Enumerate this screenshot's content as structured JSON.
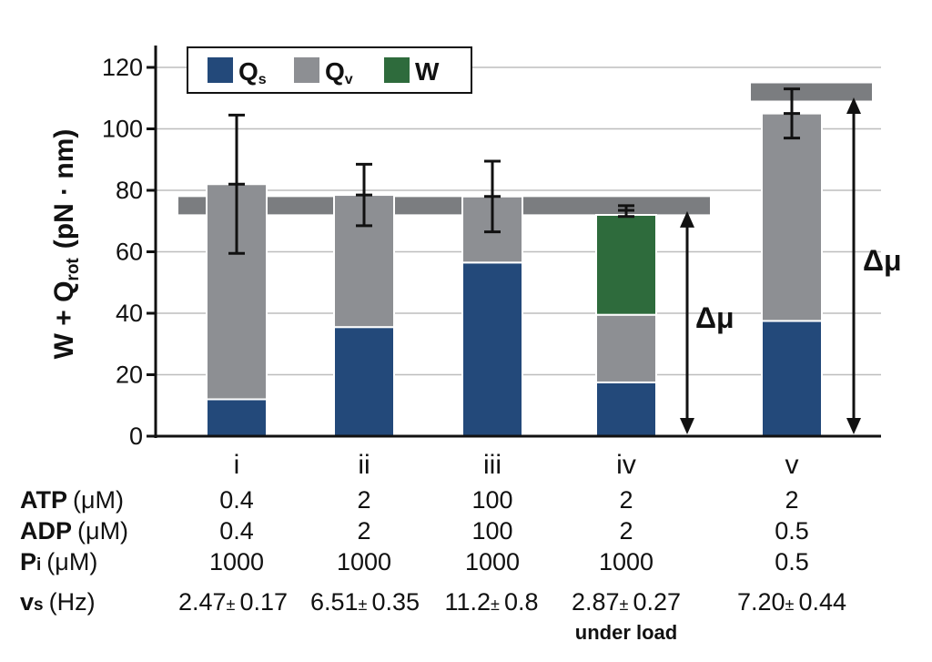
{
  "chart_data": {
    "type": "bar",
    "stacked": true,
    "ylabel_main": "W + Q",
    "ylabel_sub": "rot",
    "ylabel_units": "(pN · nm)",
    "ylim": [
      0,
      120
    ],
    "yticks": [
      "0",
      "20",
      "40",
      "60",
      "80",
      "100",
      "120"
    ],
    "grid": true,
    "legend_position": "top-left",
    "categories": [
      "i",
      "ii",
      "iii",
      "iv",
      "v"
    ],
    "series": [
      {
        "name": "Q",
        "name_sub": "s",
        "color": "#23497a",
        "values": [
          12,
          35.5,
          56.5,
          17.5,
          37.5
        ]
      },
      {
        "name": "Q",
        "name_sub": "v",
        "color": "#8d8f93",
        "values": [
          70,
          43,
          21.5,
          22,
          67.5
        ]
      },
      {
        "name": "W",
        "name_sub": "",
        "color": "#2e6b3c",
        "values": [
          0,
          0,
          0,
          32.5,
          0
        ]
      }
    ],
    "errors": [
      {
        "mean": 82,
        "low": 59.5,
        "high": 104.5
      },
      {
        "mean": 78.5,
        "low": 68.5,
        "high": 88.5
      },
      {
        "mean": 78,
        "low": 66.5,
        "high": 89.5
      },
      {
        "mean": 73.5,
        "low": 71.5,
        "high": 75
      },
      {
        "mean": 105,
        "low": 97,
        "high": 113
      }
    ],
    "reference_bands": [
      {
        "value": 75,
        "from_category": 0,
        "to_category": 3
      },
      {
        "value": 112,
        "from_category": 4,
        "to_category": 4
      }
    ],
    "annotations": [
      {
        "text": "Δμ",
        "arrow_category": 3,
        "from": 0,
        "to": 75
      },
      {
        "text": "Δμ",
        "arrow_category": 4,
        "from": 0,
        "to": 112
      }
    ]
  },
  "table": {
    "rows": [
      {
        "label": "ATP",
        "sub": "",
        "unit": "(μM)",
        "values": [
          "0.4",
          "2",
          "100",
          "2",
          "2"
        ]
      },
      {
        "label": "ADP",
        "sub": "",
        "unit": "(μM)",
        "values": [
          "0.4",
          "2",
          "100",
          "2",
          "0.5"
        ]
      },
      {
        "label": "P",
        "sub": "i",
        "unit": "(μM)",
        "values": [
          "1000",
          "1000",
          "1000",
          "1000",
          "0.5"
        ]
      }
    ],
    "vs_row": {
      "label": "v",
      "sub": "s",
      "unit": "(Hz)",
      "values": [
        {
          "mean": "2.47",
          "pm": "±",
          "err": "0.17"
        },
        {
          "mean": "6.51",
          "pm": "±",
          "err": "0.35"
        },
        {
          "mean": "11.2",
          "pm": "±",
          "err": "0.8"
        },
        {
          "mean": "2.87",
          "pm": "±",
          "err": "0.27"
        },
        {
          "mean": "7.20",
          "pm": "±",
          "err": "0.44"
        }
      ]
    },
    "note": {
      "category": 3,
      "text": "under load"
    }
  }
}
